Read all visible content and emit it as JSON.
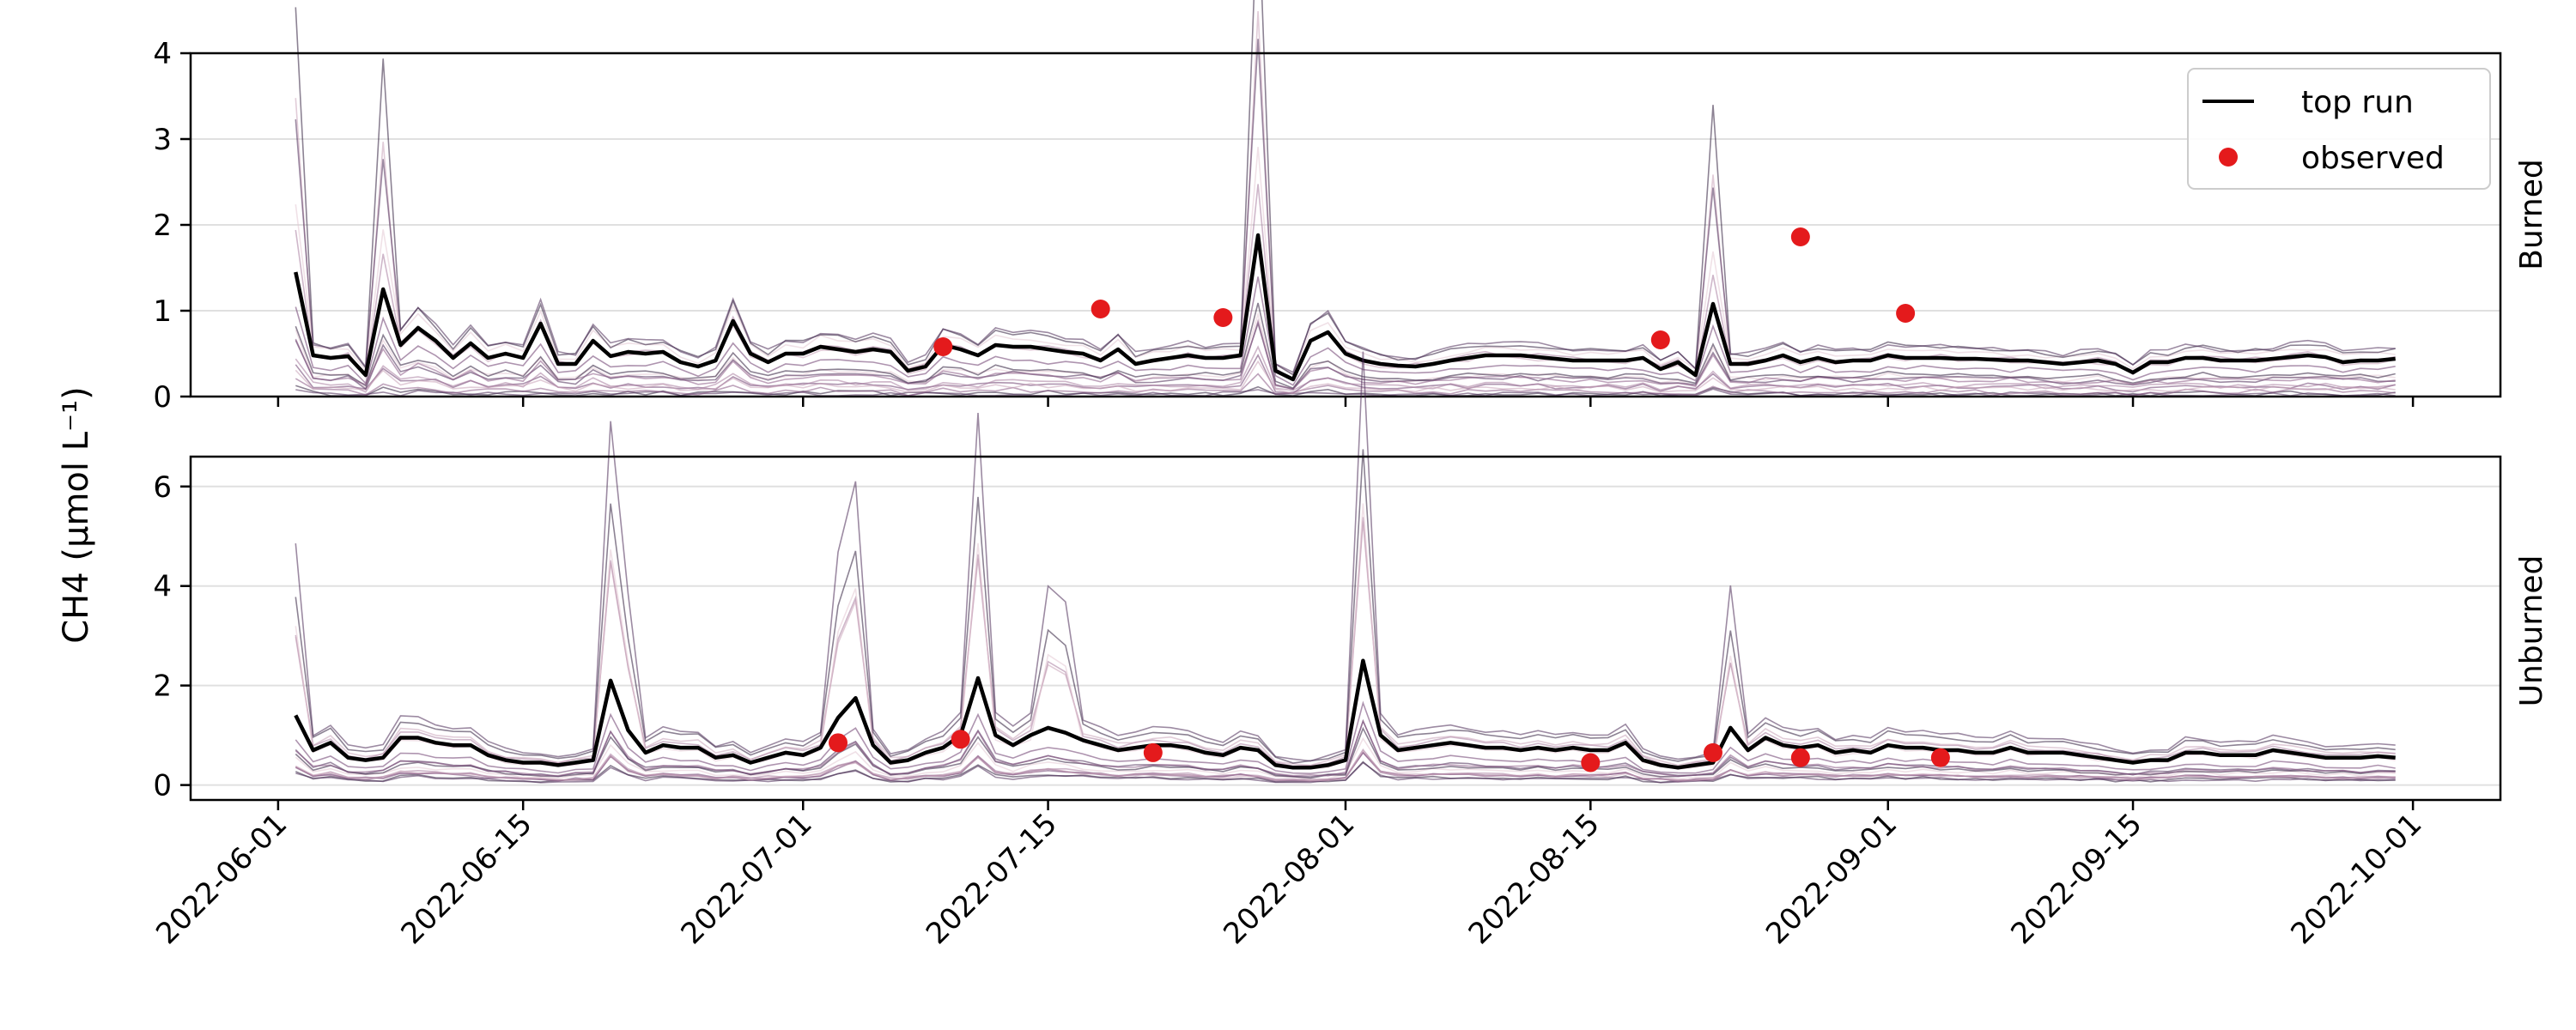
{
  "chart_data": {
    "type": "line",
    "ylabel": "CH4 (μmol L⁻¹)",
    "xlabel": "",
    "title": "",
    "x_ticks": [
      "2022-06-01",
      "2022-06-15",
      "2022-07-01",
      "2022-07-15",
      "2022-08-01",
      "2022-08-15",
      "2022-09-01",
      "2022-09-15",
      "2022-10-01"
    ],
    "x_range": [
      "2022-05-27",
      "2022-10-06"
    ],
    "grid": "y",
    "legend": {
      "placement": "top-right of upper panel",
      "entries": [
        {
          "label": "top run",
          "kind": "line",
          "color": "#000000"
        },
        {
          "label": "observed",
          "kind": "point",
          "color": "#e41a1c"
        }
      ]
    },
    "colors": {
      "top_run": "#000000",
      "observed": "#e41a1c",
      "ensemble": "#5a2f5d"
    },
    "panels": [
      {
        "label": "Burned",
        "ylim": [
          0,
          4
        ],
        "yticks": [
          0,
          1,
          2,
          3,
          4
        ],
        "top_run": [
          [
            "2022-06-02",
            1.45
          ],
          [
            "2022-06-03",
            0.48
          ],
          [
            "2022-06-04",
            0.45
          ],
          [
            "2022-06-05",
            0.47
          ],
          [
            "2022-06-06",
            0.25
          ],
          [
            "2022-06-07",
            1.25
          ],
          [
            "2022-06-08",
            0.6
          ],
          [
            "2022-06-09",
            0.8
          ],
          [
            "2022-06-10",
            0.65
          ],
          [
            "2022-06-11",
            0.45
          ],
          [
            "2022-06-12",
            0.62
          ],
          [
            "2022-06-13",
            0.45
          ],
          [
            "2022-06-14",
            0.5
          ],
          [
            "2022-06-15",
            0.45
          ],
          [
            "2022-06-16",
            0.85
          ],
          [
            "2022-06-17",
            0.38
          ],
          [
            "2022-06-18",
            0.38
          ],
          [
            "2022-06-19",
            0.65
          ],
          [
            "2022-06-20",
            0.47
          ],
          [
            "2022-06-21",
            0.52
          ],
          [
            "2022-06-22",
            0.5
          ],
          [
            "2022-06-23",
            0.52
          ],
          [
            "2022-06-24",
            0.4
          ],
          [
            "2022-06-25",
            0.35
          ],
          [
            "2022-06-26",
            0.42
          ],
          [
            "2022-06-27",
            0.88
          ],
          [
            "2022-06-28",
            0.5
          ],
          [
            "2022-06-29",
            0.4
          ],
          [
            "2022-06-30",
            0.5
          ],
          [
            "2022-07-01",
            0.5
          ],
          [
            "2022-07-02",
            0.58
          ],
          [
            "2022-07-03",
            0.55
          ],
          [
            "2022-07-04",
            0.52
          ],
          [
            "2022-07-05",
            0.55
          ],
          [
            "2022-07-06",
            0.52
          ],
          [
            "2022-07-07",
            0.3
          ],
          [
            "2022-07-08",
            0.35
          ],
          [
            "2022-07-09",
            0.6
          ],
          [
            "2022-07-10",
            0.55
          ],
          [
            "2022-07-11",
            0.48
          ],
          [
            "2022-07-12",
            0.6
          ],
          [
            "2022-07-13",
            0.58
          ],
          [
            "2022-07-14",
            0.58
          ],
          [
            "2022-07-15",
            0.55
          ],
          [
            "2022-07-16",
            0.52
          ],
          [
            "2022-07-17",
            0.5
          ],
          [
            "2022-07-18",
            0.42
          ],
          [
            "2022-07-19",
            0.55
          ],
          [
            "2022-07-20",
            0.38
          ],
          [
            "2022-07-21",
            0.42
          ],
          [
            "2022-07-22",
            0.45
          ],
          [
            "2022-07-23",
            0.48
          ],
          [
            "2022-07-24",
            0.45
          ],
          [
            "2022-07-25",
            0.45
          ],
          [
            "2022-07-26",
            0.48
          ],
          [
            "2022-07-27",
            1.88
          ],
          [
            "2022-07-28",
            0.3
          ],
          [
            "2022-07-29",
            0.2
          ],
          [
            "2022-07-30",
            0.65
          ],
          [
            "2022-07-31",
            0.75
          ],
          [
            "2022-08-01",
            0.5
          ],
          [
            "2022-08-02",
            0.42
          ],
          [
            "2022-08-03",
            0.38
          ],
          [
            "2022-08-04",
            0.36
          ],
          [
            "2022-08-05",
            0.35
          ],
          [
            "2022-08-06",
            0.38
          ],
          [
            "2022-08-07",
            0.42
          ],
          [
            "2022-08-08",
            0.45
          ],
          [
            "2022-08-09",
            0.48
          ],
          [
            "2022-08-10",
            0.48
          ],
          [
            "2022-08-11",
            0.48
          ],
          [
            "2022-08-12",
            0.46
          ],
          [
            "2022-08-13",
            0.44
          ],
          [
            "2022-08-14",
            0.42
          ],
          [
            "2022-08-15",
            0.42
          ],
          [
            "2022-08-16",
            0.42
          ],
          [
            "2022-08-17",
            0.42
          ],
          [
            "2022-08-18",
            0.45
          ],
          [
            "2022-08-19",
            0.32
          ],
          [
            "2022-08-20",
            0.4
          ],
          [
            "2022-08-21",
            0.25
          ],
          [
            "2022-08-22",
            1.08
          ],
          [
            "2022-08-23",
            0.38
          ],
          [
            "2022-08-24",
            0.38
          ],
          [
            "2022-08-25",
            0.42
          ],
          [
            "2022-08-26",
            0.48
          ],
          [
            "2022-08-27",
            0.4
          ],
          [
            "2022-08-28",
            0.45
          ],
          [
            "2022-08-29",
            0.4
          ],
          [
            "2022-08-30",
            0.42
          ],
          [
            "2022-08-31",
            0.42
          ],
          [
            "2022-09-01",
            0.48
          ],
          [
            "2022-09-02",
            0.45
          ],
          [
            "2022-09-03",
            0.45
          ],
          [
            "2022-09-04",
            0.45
          ],
          [
            "2022-09-05",
            0.44
          ],
          [
            "2022-09-06",
            0.44
          ],
          [
            "2022-09-07",
            0.43
          ],
          [
            "2022-09-08",
            0.42
          ],
          [
            "2022-09-09",
            0.42
          ],
          [
            "2022-09-10",
            0.4
          ],
          [
            "2022-09-11",
            0.38
          ],
          [
            "2022-09-12",
            0.4
          ],
          [
            "2022-09-13",
            0.42
          ],
          [
            "2022-09-14",
            0.38
          ],
          [
            "2022-09-15",
            0.28
          ],
          [
            "2022-09-16",
            0.4
          ],
          [
            "2022-09-17",
            0.4
          ],
          [
            "2022-09-18",
            0.45
          ],
          [
            "2022-09-19",
            0.45
          ],
          [
            "2022-09-20",
            0.42
          ],
          [
            "2022-09-21",
            0.42
          ],
          [
            "2022-09-22",
            0.42
          ],
          [
            "2022-09-23",
            0.44
          ],
          [
            "2022-09-24",
            0.46
          ],
          [
            "2022-09-25",
            0.48
          ],
          [
            "2022-09-26",
            0.46
          ],
          [
            "2022-09-27",
            0.4
          ],
          [
            "2022-09-28",
            0.42
          ],
          [
            "2022-09-29",
            0.42
          ],
          [
            "2022-09-30",
            0.44
          ]
        ],
        "observed": [
          [
            "2022-07-09",
            0.58
          ],
          [
            "2022-07-18",
            1.02
          ],
          [
            "2022-07-25",
            0.92
          ],
          [
            "2022-08-19",
            0.66
          ],
          [
            "2022-08-27",
            1.86
          ],
          [
            "2022-09-02",
            0.97
          ]
        ]
      },
      {
        "label": "Unburned",
        "ylim": [
          -0.3,
          6.6
        ],
        "yticks": [
          0,
          2,
          4,
          6
        ],
        "top_run": [
          [
            "2022-06-02",
            1.4
          ],
          [
            "2022-06-03",
            0.7
          ],
          [
            "2022-06-04",
            0.85
          ],
          [
            "2022-06-05",
            0.55
          ],
          [
            "2022-06-06",
            0.5
          ],
          [
            "2022-06-07",
            0.55
          ],
          [
            "2022-06-08",
            0.95
          ],
          [
            "2022-06-09",
            0.95
          ],
          [
            "2022-06-10",
            0.85
          ],
          [
            "2022-06-11",
            0.8
          ],
          [
            "2022-06-12",
            0.8
          ],
          [
            "2022-06-13",
            0.6
          ],
          [
            "2022-06-14",
            0.5
          ],
          [
            "2022-06-15",
            0.45
          ],
          [
            "2022-06-16",
            0.45
          ],
          [
            "2022-06-17",
            0.4
          ],
          [
            "2022-06-18",
            0.45
          ],
          [
            "2022-06-19",
            0.5
          ],
          [
            "2022-06-20",
            2.1
          ],
          [
            "2022-06-21",
            1.1
          ],
          [
            "2022-06-22",
            0.65
          ],
          [
            "2022-06-23",
            0.8
          ],
          [
            "2022-06-24",
            0.75
          ],
          [
            "2022-06-25",
            0.75
          ],
          [
            "2022-06-26",
            0.55
          ],
          [
            "2022-06-27",
            0.6
          ],
          [
            "2022-06-28",
            0.45
          ],
          [
            "2022-06-29",
            0.55
          ],
          [
            "2022-06-30",
            0.65
          ],
          [
            "2022-07-01",
            0.6
          ],
          [
            "2022-07-02",
            0.75
          ],
          [
            "2022-07-03",
            1.35
          ],
          [
            "2022-07-04",
            1.75
          ],
          [
            "2022-07-05",
            0.8
          ],
          [
            "2022-07-06",
            0.45
          ],
          [
            "2022-07-07",
            0.5
          ],
          [
            "2022-07-08",
            0.65
          ],
          [
            "2022-07-09",
            0.75
          ],
          [
            "2022-07-10",
            1.0
          ],
          [
            "2022-07-11",
            2.15
          ],
          [
            "2022-07-12",
            1.0
          ],
          [
            "2022-07-13",
            0.8
          ],
          [
            "2022-07-14",
            1.0
          ],
          [
            "2022-07-15",
            1.15
          ],
          [
            "2022-07-16",
            1.05
          ],
          [
            "2022-07-17",
            0.9
          ],
          [
            "2022-07-18",
            0.8
          ],
          [
            "2022-07-19",
            0.7
          ],
          [
            "2022-07-20",
            0.75
          ],
          [
            "2022-07-21",
            0.8
          ],
          [
            "2022-07-22",
            0.8
          ],
          [
            "2022-07-23",
            0.75
          ],
          [
            "2022-07-24",
            0.65
          ],
          [
            "2022-07-25",
            0.6
          ],
          [
            "2022-07-26",
            0.75
          ],
          [
            "2022-07-27",
            0.7
          ],
          [
            "2022-07-28",
            0.4
          ],
          [
            "2022-07-29",
            0.35
          ],
          [
            "2022-07-30",
            0.35
          ],
          [
            "2022-07-31",
            0.4
          ],
          [
            "2022-08-01",
            0.5
          ],
          [
            "2022-08-02",
            2.5
          ],
          [
            "2022-08-03",
            1.0
          ],
          [
            "2022-08-04",
            0.7
          ],
          [
            "2022-08-05",
            0.75
          ],
          [
            "2022-08-06",
            0.8
          ],
          [
            "2022-08-07",
            0.85
          ],
          [
            "2022-08-08",
            0.8
          ],
          [
            "2022-08-09",
            0.75
          ],
          [
            "2022-08-10",
            0.75
          ],
          [
            "2022-08-11",
            0.7
          ],
          [
            "2022-08-12",
            0.75
          ],
          [
            "2022-08-13",
            0.7
          ],
          [
            "2022-08-14",
            0.75
          ],
          [
            "2022-08-15",
            0.7
          ],
          [
            "2022-08-16",
            0.7
          ],
          [
            "2022-08-17",
            0.85
          ],
          [
            "2022-08-18",
            0.5
          ],
          [
            "2022-08-19",
            0.4
          ],
          [
            "2022-08-20",
            0.35
          ],
          [
            "2022-08-21",
            0.4
          ],
          [
            "2022-08-22",
            0.45
          ],
          [
            "2022-08-23",
            1.15
          ],
          [
            "2022-08-24",
            0.7
          ],
          [
            "2022-08-25",
            0.95
          ],
          [
            "2022-08-26",
            0.8
          ],
          [
            "2022-08-27",
            0.75
          ],
          [
            "2022-08-28",
            0.8
          ],
          [
            "2022-08-29",
            0.65
          ],
          [
            "2022-08-30",
            0.7
          ],
          [
            "2022-08-31",
            0.65
          ],
          [
            "2022-09-01",
            0.8
          ],
          [
            "2022-09-02",
            0.75
          ],
          [
            "2022-09-03",
            0.75
          ],
          [
            "2022-09-04",
            0.7
          ],
          [
            "2022-09-05",
            0.7
          ],
          [
            "2022-09-06",
            0.65
          ],
          [
            "2022-09-07",
            0.65
          ],
          [
            "2022-09-08",
            0.75
          ],
          [
            "2022-09-09",
            0.65
          ],
          [
            "2022-09-10",
            0.65
          ],
          [
            "2022-09-11",
            0.65
          ],
          [
            "2022-09-12",
            0.6
          ],
          [
            "2022-09-13",
            0.55
          ],
          [
            "2022-09-14",
            0.5
          ],
          [
            "2022-09-15",
            0.45
          ],
          [
            "2022-09-16",
            0.5
          ],
          [
            "2022-09-17",
            0.5
          ],
          [
            "2022-09-18",
            0.65
          ],
          [
            "2022-09-19",
            0.65
          ],
          [
            "2022-09-20",
            0.6
          ],
          [
            "2022-09-21",
            0.6
          ],
          [
            "2022-09-22",
            0.6
          ],
          [
            "2022-09-23",
            0.7
          ],
          [
            "2022-09-24",
            0.65
          ],
          [
            "2022-09-25",
            0.6
          ],
          [
            "2022-09-26",
            0.55
          ],
          [
            "2022-09-27",
            0.55
          ],
          [
            "2022-09-28",
            0.55
          ],
          [
            "2022-09-29",
            0.58
          ],
          [
            "2022-09-30",
            0.55
          ]
        ],
        "observed": [
          [
            "2022-07-03",
            0.85
          ],
          [
            "2022-07-10",
            0.92
          ],
          [
            "2022-07-21",
            0.65
          ],
          [
            "2022-08-15",
            0.45
          ],
          [
            "2022-08-22",
            0.65
          ],
          [
            "2022-08-27",
            0.55
          ],
          [
            "2022-09-04",
            0.55
          ]
        ]
      }
    ]
  }
}
